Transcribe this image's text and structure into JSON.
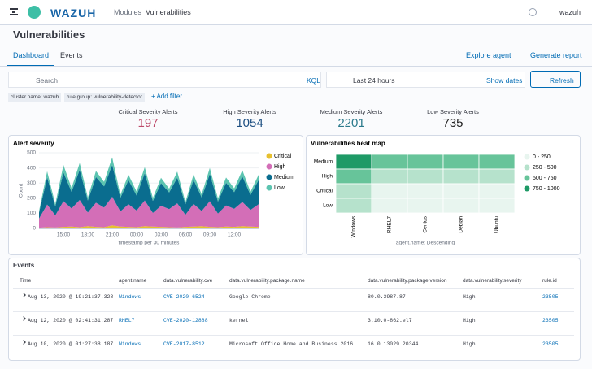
{
  "header": {
    "brand": "WAZUH",
    "breadcrumb": [
      "Modules",
      "Vulnerabilities"
    ],
    "user": "wazuh"
  },
  "page_title": "Vulnerabilities",
  "tabs": [
    "Dashboard",
    "Events"
  ],
  "actions": [
    "Explore agent",
    "Generate report"
  ],
  "search": {
    "placeholder": "Search",
    "language": "KQL",
    "time_range": "Last 24 hours",
    "show_dates": "Show dates",
    "refresh": "Refresh"
  },
  "filters": [
    "cluster.name: wazuh",
    "rule.group: vulnerability-detector"
  ],
  "add_filter": "+ Add filter",
  "metrics": [
    {
      "label": "Critical Severity Alerts",
      "value": 197,
      "color": "#bd4a6a"
    },
    {
      "label": "High Severity Alerts",
      "value": 1054,
      "color": "#1d4f82"
    },
    {
      "label": "Medium Severity Alerts",
      "value": 2201,
      "color": "#2b7a8c"
    },
    {
      "label": "Low Severity Alerts",
      "value": 735,
      "color": "#222222"
    }
  ],
  "chart_data": [
    {
      "type": "area",
      "title": "Alert severity",
      "x_label": "timestamp per 30 minutes",
      "y_label": "Count",
      "categories": [
        null,
        null,
        null,
        "15:00",
        null,
        null,
        "18:00",
        null,
        null,
        "21:00",
        null,
        null,
        "00:00",
        null,
        null,
        "03:00",
        null,
        null,
        "06:00",
        null,
        null,
        "09:00",
        null,
        null,
        "12:00",
        null,
        null,
        null
      ],
      "series": [
        {
          "name": "Critical",
          "color": "#e7c02f",
          "values": [
            5,
            8,
            6,
            10,
            12,
            8,
            15,
            10,
            8,
            20,
            12,
            10,
            8,
            15,
            12,
            10,
            8,
            6,
            10,
            12,
            15,
            10,
            8,
            12,
            10,
            15,
            12,
            10
          ]
        },
        {
          "name": "High",
          "color": "#d36eb7",
          "values": [
            60,
            150,
            80,
            170,
            120,
            180,
            90,
            160,
            130,
            190,
            100,
            150,
            110,
            170,
            90,
            140,
            120,
            160,
            80,
            150,
            100,
            170,
            90,
            140,
            120,
            160,
            110,
            150
          ]
        },
        {
          "name": "Medium",
          "color": "#0a6d8f",
          "values": [
            40,
            180,
            60,
            190,
            110,
            200,
            80,
            170,
            140,
            210,
            90,
            160,
            100,
            180,
            80,
            150,
            110,
            170,
            70,
            160,
            90,
            180,
            80,
            150,
            110,
            170,
            100,
            160
          ]
        },
        {
          "name": "Low",
          "color": "#5cc4b0",
          "values": [
            10,
            40,
            15,
            50,
            25,
            45,
            20,
            40,
            30,
            50,
            20,
            35,
            25,
            40,
            20,
            35,
            25,
            40,
            15,
            35,
            20,
            40,
            20,
            35,
            25,
            40,
            20,
            35
          ]
        }
      ],
      "ylim": [
        0,
        500
      ],
      "yticks": [
        0,
        100,
        200,
        300,
        400,
        500
      ],
      "grid": true,
      "legend": "right"
    },
    {
      "type": "heatmap",
      "title": "Vulnerabilities heat map",
      "x_label": "agent.name: Descending",
      "rows": [
        "Medium",
        "High",
        "Critical",
        "Low"
      ],
      "columns": [
        "Windows",
        "RHEL7",
        "Centos",
        "Debian",
        "Ubuntu"
      ],
      "values": [
        [
          850,
          600,
          620,
          580,
          560
        ],
        [
          600,
          380,
          420,
          300,
          320
        ],
        [
          300,
          150,
          100,
          120,
          100
        ],
        [
          280,
          120,
          100,
          110,
          90
        ]
      ],
      "bins": [
        0,
        250,
        500,
        750,
        1000
      ],
      "bin_labels": [
        "0 - 250",
        "250 - 500",
        "500 - 750",
        "750 - 1000"
      ],
      "colors": [
        "#e8f5ef",
        "#b6e2cc",
        "#67c49a",
        "#1e9a66"
      ],
      "legend": "right"
    }
  ],
  "events": {
    "title": "Events",
    "columns": [
      "Time",
      "agent.name",
      "data.vulnerability.cve",
      "data.vulnerability.package.name",
      "data.vulnerability.package.version",
      "data.vulnerability.severity",
      "rule.id"
    ],
    "rows": [
      [
        "Aug 13, 2020 @ 19:21:37.328",
        "Windows",
        "CVE-2020-6524",
        "Google Chrome",
        "80.0.3987.87",
        "High",
        "23505"
      ],
      [
        "Aug 12, 2020 @ 02:41:31.287",
        "RHEL7",
        "CVE-2020-12888",
        "kernel",
        "3.10.0-862.el7",
        "High",
        "23505"
      ],
      [
        "Aug 10, 2020 @ 01:27:38.187",
        "Windows",
        "CVE-2017-8512",
        "Microsoft Office Home and Business 2016",
        "16.0.13029.20344",
        "High",
        "23505"
      ]
    ]
  }
}
